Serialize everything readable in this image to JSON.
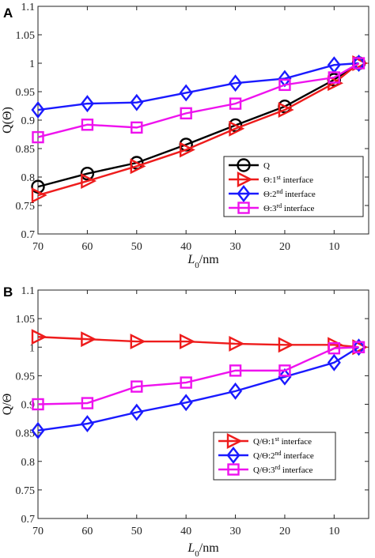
{
  "chart_data": [
    {
      "panel_label": "A",
      "type": "line",
      "x": [
        70,
        60,
        50,
        40,
        30,
        20,
        10,
        5
      ],
      "x_ticks": [
        70,
        60,
        50,
        40,
        30,
        20,
        10
      ],
      "xlim": [
        70,
        3
      ],
      "ylim": [
        0.7,
        1.1
      ],
      "y_ticks": [
        0.7,
        0.75,
        0.8,
        0.85,
        0.9,
        0.95,
        1,
        1.05,
        1.1
      ],
      "xlabel_main": "L",
      "xlabel_sub": "0",
      "xlabel_rest": "/nm",
      "ylabel": "Q(Θ)",
      "legend_position": "bottom-right",
      "series": [
        {
          "legend": {
            "main": "Q",
            "sup": "",
            "rest": ""
          },
          "color": "#000000",
          "marker": "circle",
          "values": [
            0.783,
            0.806,
            0.825,
            0.857,
            0.891,
            0.924,
            0.971,
            1.0
          ]
        },
        {
          "legend": {
            "main": "Θ:1",
            "sup": "st",
            "rest": " interface"
          },
          "color": "#ee1c1c",
          "marker": "triangle-right",
          "values": [
            0.768,
            0.793,
            0.819,
            0.848,
            0.885,
            0.918,
            0.965,
            1.0
          ]
        },
        {
          "legend": {
            "main": "Θ:2",
            "sup": "nd",
            "rest": " interface"
          },
          "color": "#1a1aff",
          "marker": "diamond",
          "values": [
            0.918,
            0.929,
            0.931,
            0.948,
            0.965,
            0.973,
            0.997,
            1.0
          ]
        },
        {
          "legend": {
            "main": "Θ:3",
            "sup": "rd",
            "rest": " interface"
          },
          "color": "#ee12ee",
          "marker": "square",
          "values": [
            0.87,
            0.892,
            0.887,
            0.912,
            0.929,
            0.962,
            0.975,
            1.0
          ]
        }
      ]
    },
    {
      "panel_label": "B",
      "type": "line",
      "x": [
        70,
        60,
        50,
        40,
        30,
        20,
        10,
        5
      ],
      "x_ticks": [
        70,
        60,
        50,
        40,
        30,
        20,
        10
      ],
      "xlim": [
        70,
        3
      ],
      "ylim": [
        0.7,
        1.1
      ],
      "y_ticks": [
        0.7,
        0.75,
        0.8,
        0.85,
        0.9,
        0.95,
        1,
        1.05,
        1.1
      ],
      "xlabel_main": "L",
      "xlabel_sub": "0",
      "xlabel_rest": "/nm",
      "ylabel": "Q/Θ",
      "legend_position": "bottom-right",
      "series": [
        {
          "legend": {
            "main": "Q/Θ:1",
            "sup": "st",
            "rest": " interface"
          },
          "color": "#ee1c1c",
          "marker": "triangle-right",
          "values": [
            1.018,
            1.014,
            1.01,
            1.01,
            1.006,
            1.004,
            1.004,
            1.0
          ]
        },
        {
          "legend": {
            "main": "Q/Θ:2",
            "sup": "nd",
            "rest": " interface"
          },
          "color": "#1a1aff",
          "marker": "diamond",
          "values": [
            0.854,
            0.866,
            0.886,
            0.903,
            0.923,
            0.948,
            0.973,
            1.0
          ]
        },
        {
          "legend": {
            "main": "Q/Θ:3",
            "sup": "rd",
            "rest": " interface"
          },
          "color": "#ee12ee",
          "marker": "square",
          "values": [
            0.9,
            0.902,
            0.931,
            0.938,
            0.959,
            0.959,
            0.998,
            1.0
          ]
        }
      ]
    }
  ]
}
